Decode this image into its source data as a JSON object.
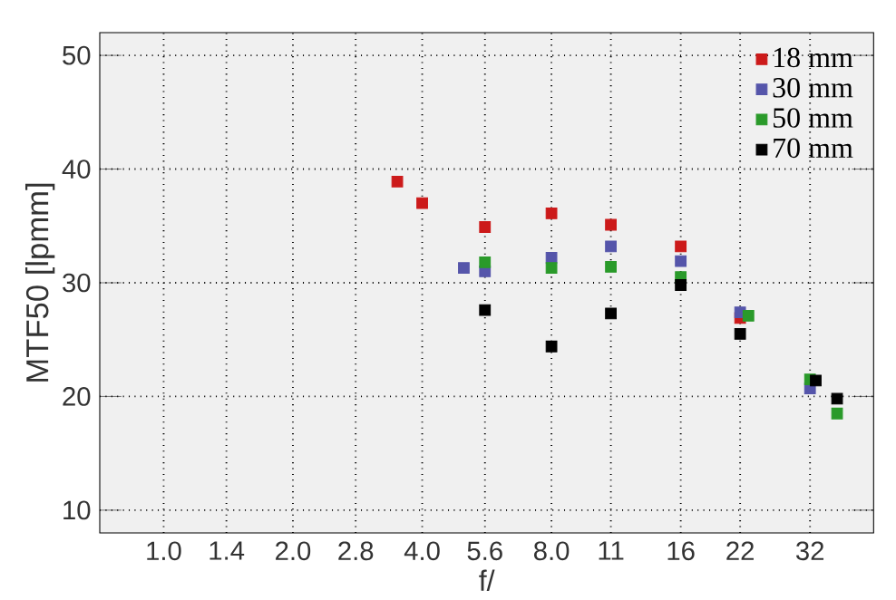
{
  "chart_data": {
    "type": "scatter",
    "xlabel": "f/",
    "ylabel": "MTF50 [lpmm]",
    "xlim": [
      0.71,
      45
    ],
    "ylim": [
      8,
      52
    ],
    "log": "x",
    "xticks": [
      {
        "value": 1,
        "label": "1.0"
      },
      1.4,
      {
        "value": 2,
        "label": "2.0"
      },
      2.8,
      {
        "value": 4,
        "label": "4.0"
      },
      5.6,
      {
        "value": 8,
        "label": "8.0"
      },
      11,
      16,
      22,
      32
    ],
    "yticks": [
      10,
      20,
      30,
      40,
      50
    ],
    "grid": true,
    "legend": "top right",
    "marker": "square",
    "series": [
      {
        "name": "18 mm",
        "color": "#cc1a1a",
        "x": [
          3.5,
          4,
          5.6,
          8,
          11,
          16,
          22
        ],
        "values": [
          38.9,
          37.0,
          34.9,
          36.1,
          35.1,
          33.2,
          26.9
        ]
      },
      {
        "name": "30 mm",
        "color": "#5555aa",
        "x": [
          5,
          5.6,
          8,
          11,
          16,
          22,
          32
        ],
        "values": [
          31.3,
          31.0,
          32.2,
          33.2,
          31.9,
          27.4,
          20.7
        ]
      },
      {
        "name": "50 mm",
        "color": "#2a9a2a",
        "x": [
          5.6,
          8,
          11,
          16,
          23,
          32,
          37
        ],
        "values": [
          31.8,
          31.3,
          31.4,
          30.5,
          27.1,
          21.5,
          18.5
        ]
      },
      {
        "name": "70 mm",
        "color": "#000000",
        "x": [
          5.6,
          8,
          11,
          16,
          22,
          33,
          37
        ],
        "values": [
          27.6,
          24.4,
          27.3,
          29.8,
          25.5,
          21.4,
          19.8
        ]
      }
    ]
  }
}
